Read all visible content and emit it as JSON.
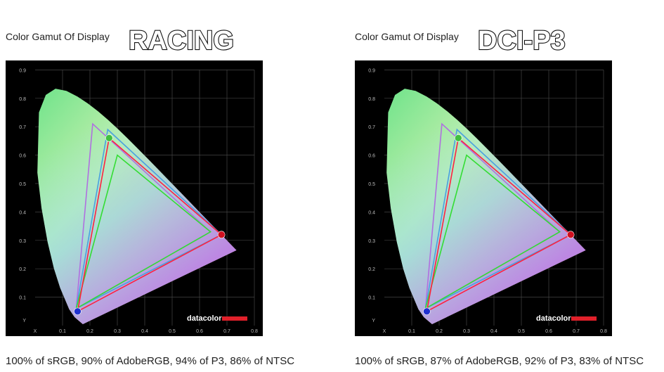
{
  "panels": [
    {
      "label": "Color Gamut Of Display",
      "mode": "RACING",
      "caption": "100% of sRGB, 90% of AdobeRGB, 94% of P3, 86% of NTSC",
      "logo": "datacolor",
      "x_label": "X",
      "y_label": "Y",
      "xticks": [
        0.1,
        0.2,
        0.3,
        0.4,
        0.5,
        0.6,
        0.7,
        0.8
      ],
      "yticks": [
        0.1,
        0.2,
        0.3,
        0.4,
        0.5,
        0.6,
        0.7,
        0.8,
        0.9
      ]
    },
    {
      "label": "Color Gamut Of Display",
      "mode": "DCI-P3",
      "caption": "100% of sRGB, 87% of AdobeRGB, 92% of P3, 83% of NTSC",
      "logo": "datacolor",
      "x_label": "X",
      "y_label": "Y",
      "xticks": [
        0.1,
        0.2,
        0.3,
        0.4,
        0.5,
        0.6,
        0.7,
        0.8
      ],
      "yticks": [
        0.1,
        0.2,
        0.3,
        0.4,
        0.5,
        0.6,
        0.7,
        0.8,
        0.9
      ]
    }
  ]
}
